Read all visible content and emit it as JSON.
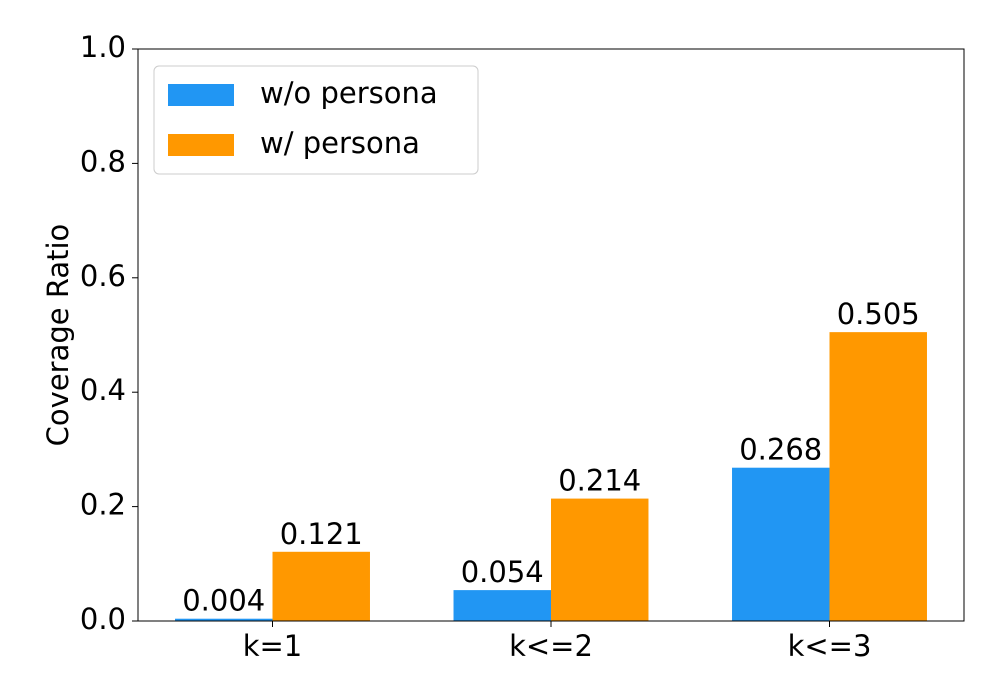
{
  "chart_data": {
    "type": "bar",
    "ylabel": "Coverage Ratio",
    "categories": [
      "k=1",
      "k<=2",
      "k<=3"
    ],
    "series": [
      {
        "name": "w/o persona",
        "color": "#2196f3",
        "values": [
          0.004,
          0.054,
          0.268
        ]
      },
      {
        "name": "w/ persona",
        "color": "#ff9800",
        "values": [
          0.121,
          0.214,
          0.505
        ]
      }
    ],
    "ylim": [
      0,
      1
    ],
    "yticks": [
      {
        "value": 0,
        "label": "0.0"
      },
      0.2,
      0.4,
      0.6,
      0.8,
      {
        "value": 1,
        "label": "1.0"
      }
    ],
    "legend": "upper left",
    "grid": false
  }
}
